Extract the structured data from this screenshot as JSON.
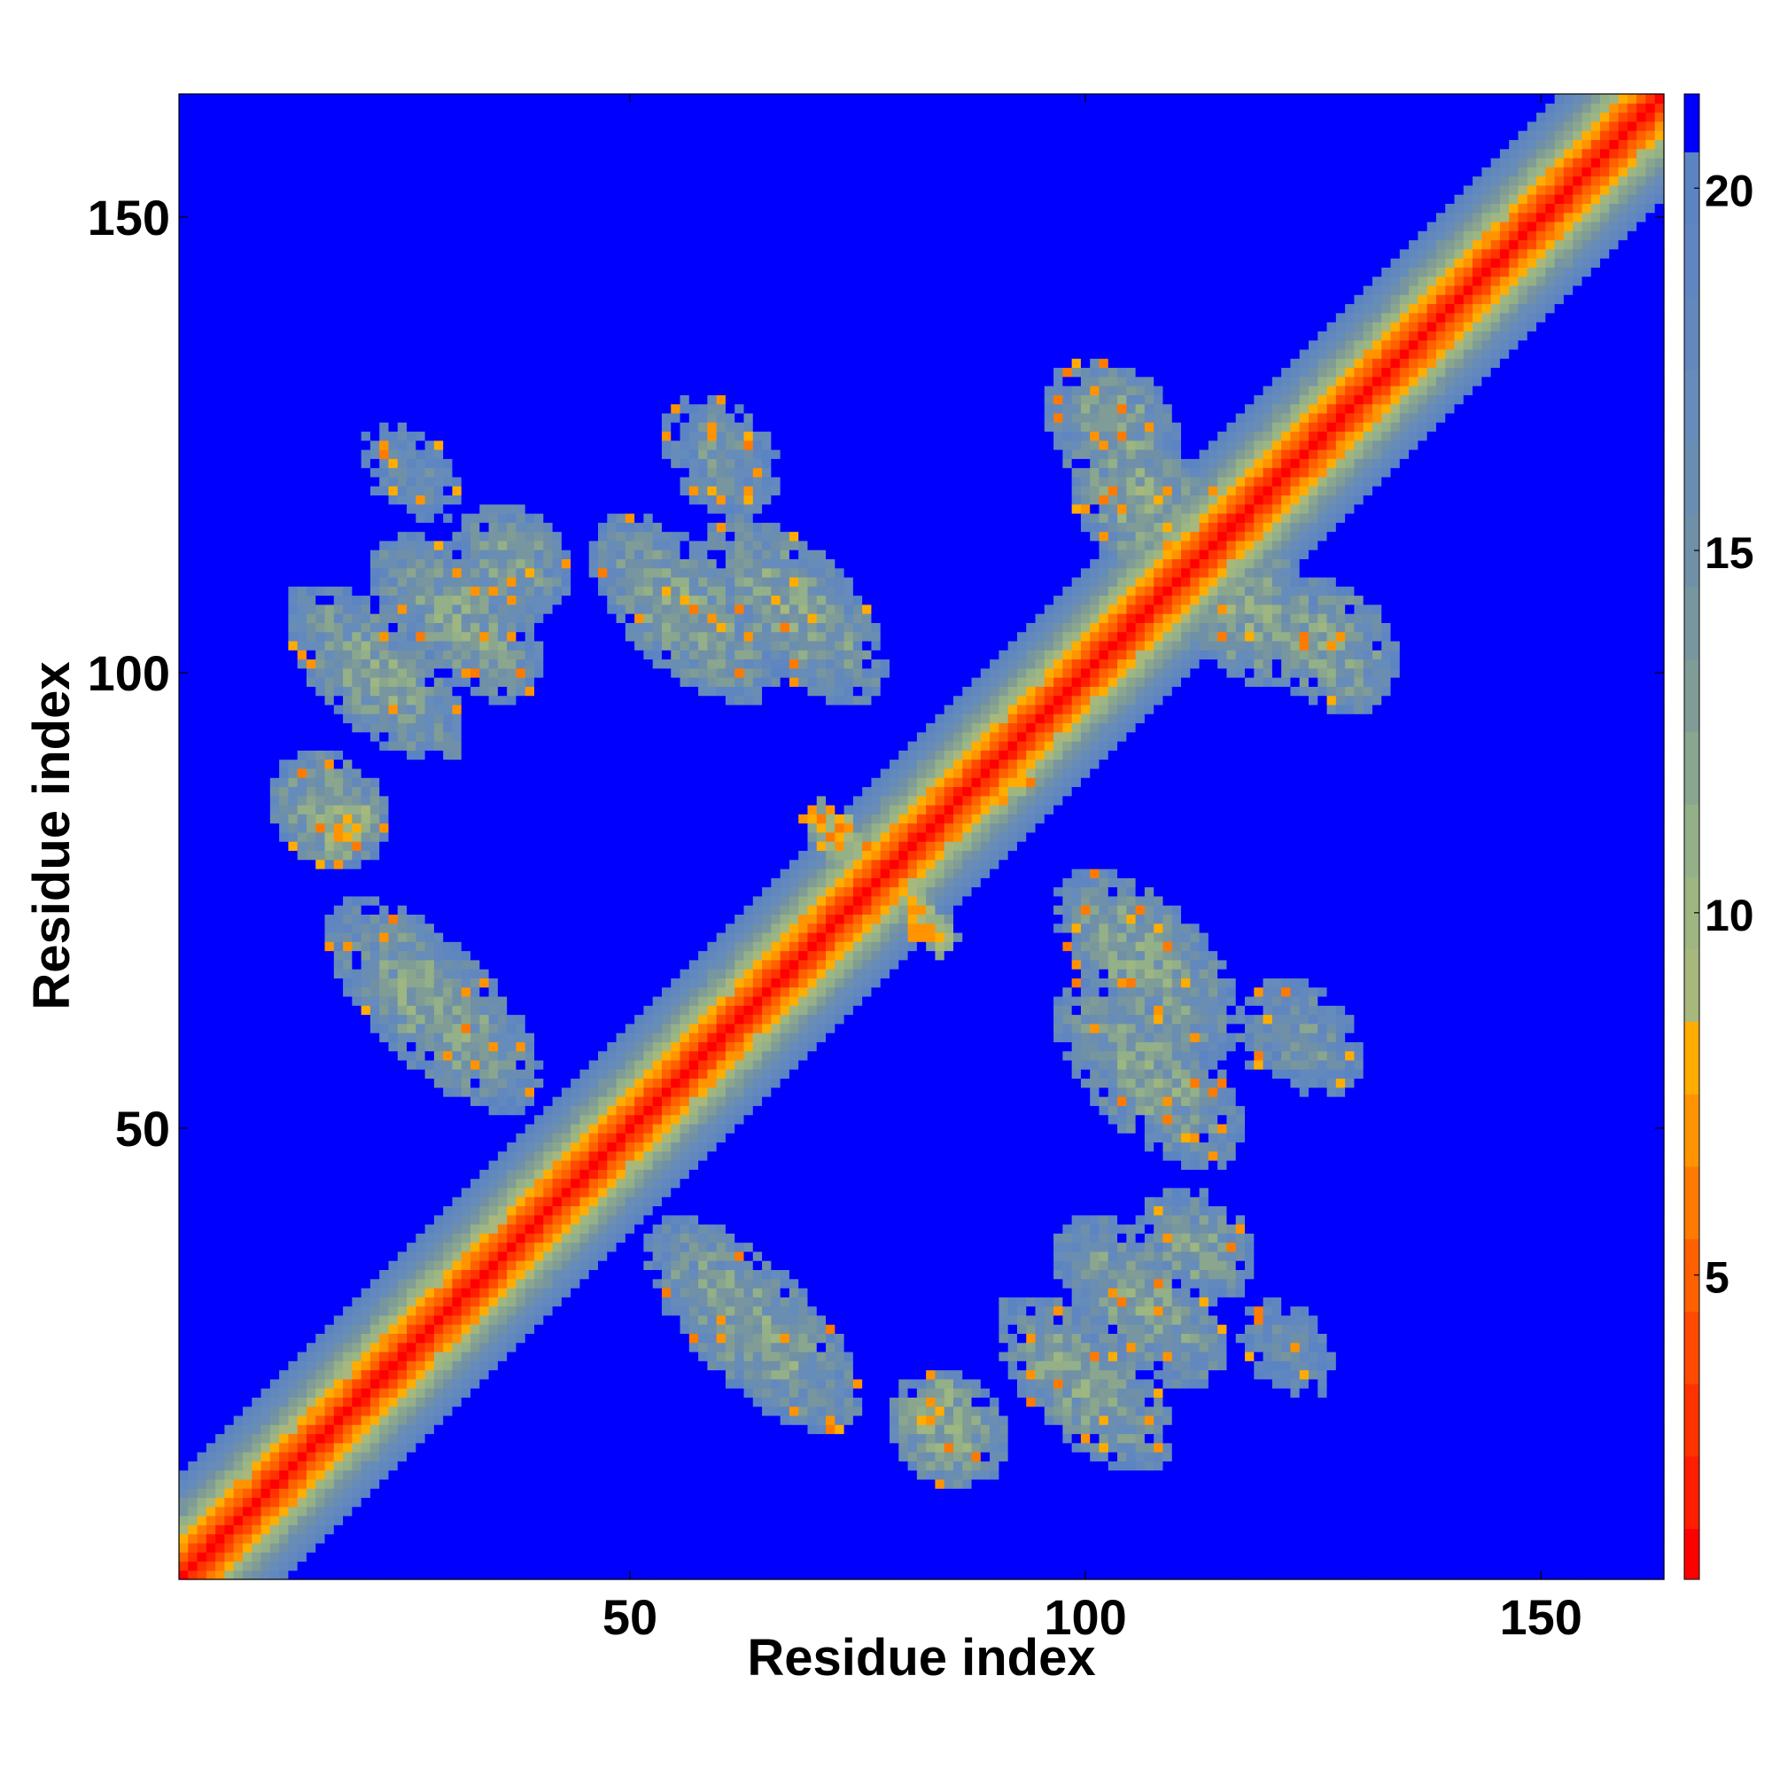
{
  "chart_data": {
    "type": "heatmap",
    "title": "",
    "xlabel": "Residue index",
    "ylabel": "Residue index",
    "n_residues": 163,
    "xlim": [
      0.5,
      163.5
    ],
    "ylim": [
      0.5,
      163.5
    ],
    "x_ticks": [
      50,
      100,
      150
    ],
    "y_ticks": [
      50,
      100,
      150
    ],
    "x_tick_labels": [
      "50",
      "100",
      "150"
    ],
    "y_tick_labels": [
      "50",
      "100",
      "150"
    ],
    "colorbar": {
      "range": [
        0.8,
        21.3
      ],
      "ticks": [
        5,
        10,
        15,
        20
      ],
      "tick_labels": [
        "5",
        "10",
        "15",
        "20"
      ],
      "levels": [
        {
          "max": 1.5,
          "color": "#ff0000"
        },
        {
          "max": 2.5,
          "color": "#ff1f00"
        },
        {
          "max": 3.5,
          "color": "#ff3300"
        },
        {
          "max": 4.5,
          "color": "#ff4a00"
        },
        {
          "max": 5.5,
          "color": "#ff6000"
        },
        {
          "max": 6.5,
          "color": "#ff7a00"
        },
        {
          "max": 7.5,
          "color": "#ff9400"
        },
        {
          "max": 8.5,
          "color": "#ffad00"
        },
        {
          "max": 9.5,
          "color": "#a8b87c"
        },
        {
          "max": 10.5,
          "color": "#9db682"
        },
        {
          "max": 11.5,
          "color": "#93b088"
        },
        {
          "max": 12.5,
          "color": "#8aa68f"
        },
        {
          "max": 13.5,
          "color": "#809c96"
        },
        {
          "max": 14.5,
          "color": "#7896a0"
        },
        {
          "max": 15.5,
          "color": "#7090a8"
        },
        {
          "max": 16.5,
          "color": "#6a8eb2"
        },
        {
          "max": 17.5,
          "color": "#658cba"
        },
        {
          "max": 18.5,
          "color": "#6288bd"
        },
        {
          "max": 19.5,
          "color": "#5f86c0"
        },
        {
          "max": 20.5,
          "color": "#5b84c2"
        },
        {
          "max": 99,
          "color": "#0000ff"
        }
      ]
    },
    "diagonal_band": {
      "description_free": true,
      "core": 1.0,
      "slope": 1.75
    },
    "contact_regions": [
      {
        "x_center": 22,
        "y_center": 100,
        "half_length": 18,
        "half_width": 6,
        "orientation": "anti",
        "mean_distance": 12.5
      },
      {
        "x_center": 19,
        "y_center": 83,
        "half_length": 4,
        "half_width": 4,
        "orientation": "anti",
        "mean_distance": 9
      },
      {
        "x_center": 28,
        "y_center": 64,
        "half_length": 21,
        "half_width": 6.5,
        "orientation": "anti",
        "mean_distance": 12.5
      },
      {
        "x_center": 37,
        "y_center": 112,
        "half_length": 10,
        "half_width": 6,
        "orientation": "anti",
        "mean_distance": 13
      },
      {
        "x_center": 56,
        "y_center": 107,
        "half_length": 19,
        "half_width": 6.5,
        "orientation": "anti",
        "mean_distance": 12.5
      },
      {
        "x_center": 60,
        "y_center": 122,
        "half_length": 8,
        "half_width": 5,
        "orientation": "anti",
        "mean_distance": 15
      },
      {
        "x_center": 72,
        "y_center": 83,
        "half_length": 5,
        "half_width": 2.5,
        "orientation": "anti",
        "mean_distance": 7
      },
      {
        "x_center": 82,
        "y_center": 73,
        "half_length": 5,
        "half_width": 2.5,
        "orientation": "anti",
        "mean_distance": 7
      },
      {
        "x_center": 91,
        "y_center": 89,
        "half_length": 5,
        "half_width": 4,
        "orientation": "anti",
        "mean_distance": 9
      },
      {
        "x_center": 107,
        "y_center": 118,
        "half_length": 14,
        "half_width": 7,
        "orientation": "anti",
        "mean_distance": 12
      },
      {
        "x_center": 127,
        "y_center": 103,
        "half_length": 12,
        "half_width": 6.5,
        "orientation": "anti",
        "mean_distance": 12.5
      },
      {
        "x_center": 107,
        "y_center": 68,
        "half_length": 19,
        "half_width": 6.5,
        "orientation": "anti",
        "mean_distance": 12.5
      },
      {
        "x_center": 124,
        "y_center": 60,
        "half_length": 11,
        "half_width": 5.5,
        "orientation": "anti",
        "mean_distance": 14.5
      },
      {
        "x_center": 63,
        "y_center": 29,
        "half_length": 21,
        "half_width": 6.5,
        "orientation": "anti",
        "mean_distance": 12.5
      },
      {
        "x_center": 85,
        "y_center": 17,
        "half_length": 10,
        "half_width": 6,
        "orientation": "anti",
        "mean_distance": 12
      },
      {
        "x_center": 106,
        "y_center": 31,
        "half_length": 17,
        "half_width": 6,
        "orientation": "anti",
        "mean_distance": 12.5
      },
      {
        "x_center": 122,
        "y_center": 26,
        "half_length": 10,
        "half_width": 4.5,
        "orientation": "anti",
        "mean_distance": 16
      }
    ]
  }
}
